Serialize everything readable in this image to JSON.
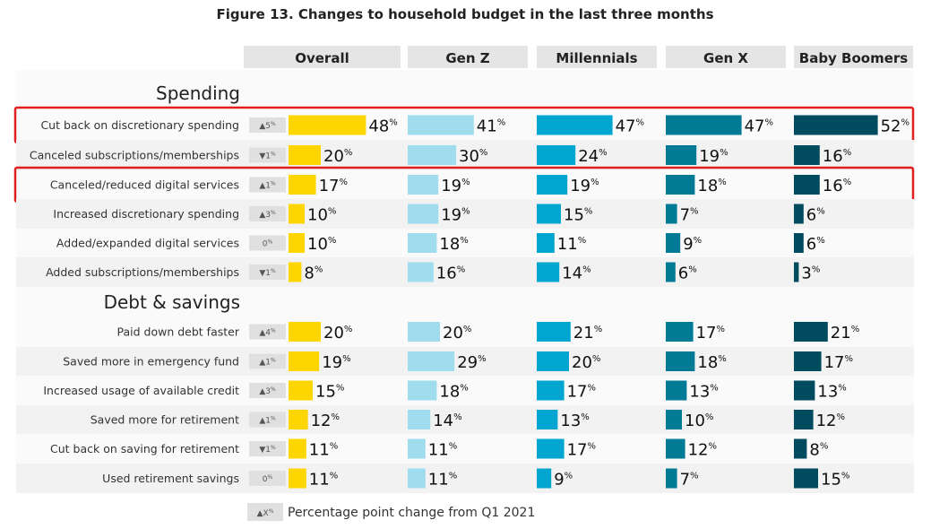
{
  "chart_data": {
    "type": "bar",
    "title": "Figure 13. Changes to household budget in the last three months",
    "value_suffix": "%",
    "series_names": [
      "Overall",
      "Gen Z",
      "Millennials",
      "Gen X",
      "Baby Boomers"
    ],
    "colors": {
      "Overall": "#fdd500",
      "Gen Z": "#9fdcee",
      "Millennials": "#00a6cf",
      "Gen X": "#007a95",
      "Baby Boomers": "#004b5e",
      "highlight": "#e02020",
      "header_bg": "#e5e5e5",
      "stripe": "#f2f2f2",
      "badge": "#e0e0e0"
    },
    "legend": {
      "badge": "▲X",
      "badge_pct": "%",
      "text": "Percentage point change from Q1 2021"
    },
    "sections": [
      {
        "name": "Spending",
        "rows": [
          {
            "label": "Cut back on discretionary spending",
            "change": "▲5",
            "values": [
              48,
              41,
              47,
              47,
              52
            ],
            "highlighted": true
          },
          {
            "label": "Canceled subscriptions/memberships",
            "change": "▼1",
            "values": [
              20,
              30,
              24,
              19,
              16
            ],
            "highlighted": false
          },
          {
            "label": "Canceled/reduced digital services",
            "change": "▲1",
            "values": [
              17,
              19,
              19,
              18,
              16
            ],
            "highlighted": true
          },
          {
            "label": "Increased discretionary spending",
            "change": "▲3",
            "values": [
              10,
              19,
              15,
              7,
              6
            ],
            "highlighted": false
          },
          {
            "label": "Added/expanded digital services",
            "change": "0",
            "values": [
              10,
              18,
              11,
              9,
              6
            ],
            "highlighted": false
          },
          {
            "label": "Added subscriptions/memberships",
            "change": "▼1",
            "values": [
              8,
              16,
              14,
              6,
              3
            ],
            "highlighted": false
          }
        ]
      },
      {
        "name": "Debt & savings",
        "rows": [
          {
            "label": "Paid down debt faster",
            "change": "▲4",
            "values": [
              20,
              20,
              21,
              17,
              21
            ],
            "highlighted": false
          },
          {
            "label": "Saved more in emergency fund",
            "change": "▲1",
            "values": [
              19,
              29,
              20,
              18,
              17
            ],
            "highlighted": false
          },
          {
            "label": "Increased usage of available credit",
            "change": "▲3",
            "values": [
              15,
              18,
              17,
              13,
              13
            ],
            "highlighted": false
          },
          {
            "label": "Saved more for retirement",
            "change": "▲1",
            "values": [
              12,
              14,
              13,
              10,
              12
            ],
            "highlighted": false
          },
          {
            "label": "Cut back on saving for retirement",
            "change": "▼1",
            "values": [
              11,
              11,
              17,
              12,
              8
            ],
            "highlighted": false
          },
          {
            "label": "Used retirement savings",
            "change": "0",
            "values": [
              11,
              11,
              9,
              7,
              15
            ],
            "highlighted": false
          }
        ]
      }
    ]
  }
}
